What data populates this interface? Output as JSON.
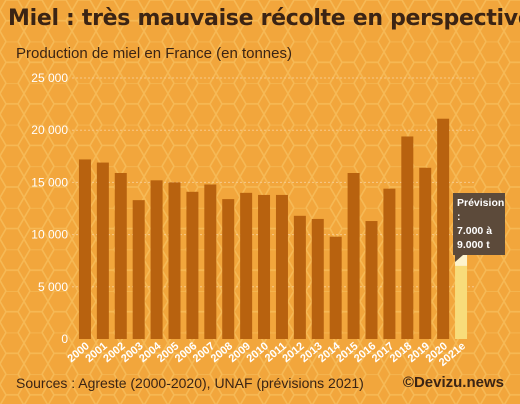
{
  "title": "Miel : très mauvaise récolte en perspective",
  "subtitle": "Production de miel en France (en tonnes)",
  "source": "Sources : Agreste (2000-2020), UNAF (prévisions 2021)",
  "brand": "©Devizu.news",
  "callout": {
    "line1": "Prévision :",
    "line2": "7.000 à",
    "line3": "9.000 t"
  },
  "colors": {
    "background": "#f2a63c",
    "bar": "#b8620f",
    "forecast_low": "#f8dc7a",
    "forecast_range": "#fdf3cd",
    "text": "#3b2414",
    "gridline": "#f7c98a"
  },
  "chart_data": {
    "type": "bar",
    "categories": [
      "2000",
      "2001",
      "2002",
      "2003",
      "2004",
      "2005",
      "2006",
      "2007",
      "2008",
      "2009",
      "2010",
      "2011",
      "2012",
      "2013",
      "2014",
      "2015",
      "2016",
      "2017",
      "2018",
      "2019",
      "2020",
      "2021e"
    ],
    "values": [
      17200,
      16900,
      15900,
      13300,
      15200,
      15000,
      14100,
      14800,
      13400,
      14000,
      13800,
      13800,
      11800,
      11500,
      9800,
      15900,
      11300,
      14400,
      19400,
      16400,
      21100,
      null
    ],
    "forecast": {
      "category": "2021e",
      "low": 7000,
      "high": 9000
    },
    "ylim": [
      0,
      25000
    ],
    "yticks": [
      "0",
      "5 000",
      "10 000",
      "15 000",
      "20 000",
      "25 000"
    ],
    "ytick_values": [
      0,
      5000,
      10000,
      15000,
      20000,
      25000
    ],
    "grid": true
  }
}
